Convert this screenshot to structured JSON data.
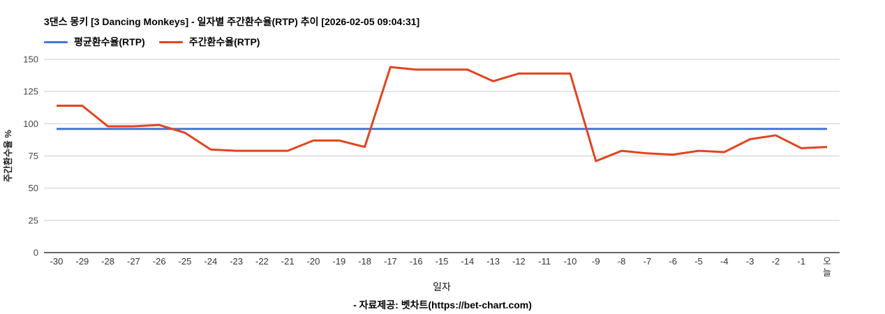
{
  "footer": {
    "credit": "- 자료제공: 벳차트(https://bet-chart.com)"
  },
  "chart_data": {
    "type": "line",
    "title": "3댄스 몽키 [3 Dancing Monkeys] - 일자별 주간환수율(RTP) 추이 [2026-02-05 09:04:31]",
    "xlabel": "일자",
    "ylabel": "주간환수율 %",
    "ylim": [
      0,
      150
    ],
    "yticks": [
      0,
      25,
      50,
      75,
      100,
      125,
      150
    ],
    "grid": true,
    "legend_position": "top-left",
    "x": [
      "-30",
      "-29",
      "-28",
      "-27",
      "-26",
      "-25",
      "-24",
      "-23",
      "-22",
      "-21",
      "-20",
      "-19",
      "-18",
      "-17",
      "-16",
      "-15",
      "-14",
      "-13",
      "-12",
      "-11",
      "-10",
      "-9",
      "-8",
      "-7",
      "-6",
      "-5",
      "-4",
      "-3",
      "-2",
      "-1",
      "오늘"
    ],
    "series": [
      {
        "name": "평균환수율(RTP)",
        "color": "#4374d9",
        "values": [
          96,
          96,
          96,
          96,
          96,
          96,
          96,
          96,
          96,
          96,
          96,
          96,
          96,
          96,
          96,
          96,
          96,
          96,
          96,
          96,
          96,
          96,
          96,
          96,
          96,
          96,
          96,
          96,
          96,
          96,
          96
        ]
      },
      {
        "name": "주간환수율(RTP)",
        "color": "#e2431e",
        "values": [
          114,
          114,
          98,
          98,
          99,
          93,
          80,
          79,
          79,
          79,
          87,
          87,
          82,
          144,
          142,
          142,
          142,
          133,
          139,
          139,
          139,
          71,
          79,
          77,
          76,
          79,
          78,
          88,
          91,
          81,
          82
        ]
      }
    ],
    "colors": {
      "grid": "#cccccc",
      "axis": "#333333"
    }
  }
}
